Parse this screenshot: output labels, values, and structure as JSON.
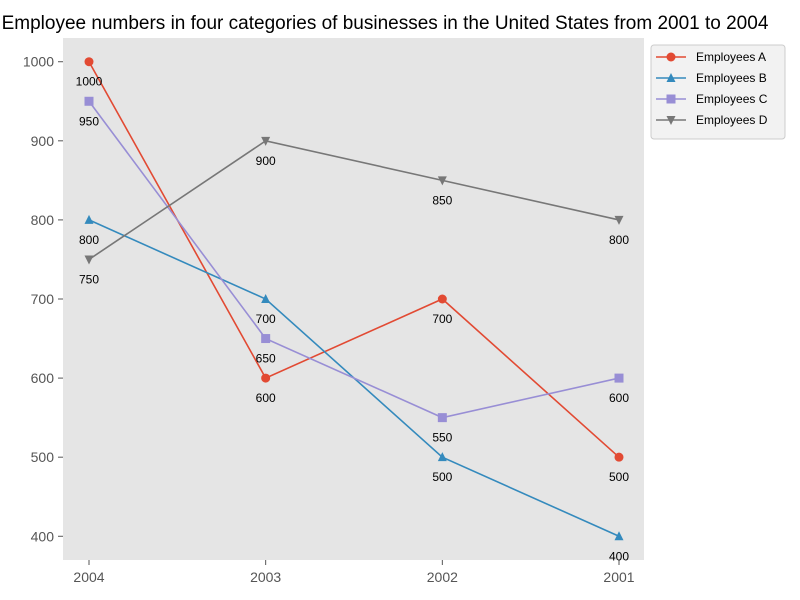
{
  "chart_data": {
    "type": "line",
    "title": "Employee numbers in four categories of businesses in the United States from 2001 to 2004",
    "xlabel": "",
    "ylabel": "",
    "categories": [
      "2004",
      "2003",
      "2002",
      "2001"
    ],
    "ylim": [
      370,
      1030
    ],
    "yticks": [
      400,
      500,
      600,
      700,
      800,
      900,
      1000
    ],
    "grid": false,
    "legend_position": "outside-top-right",
    "series": [
      {
        "name": "Employees A",
        "values": [
          1000,
          600,
          700,
          500
        ],
        "color": "#E24A33",
        "marker": "circle"
      },
      {
        "name": "Employees B",
        "values": [
          800,
          700,
          500,
          400
        ],
        "color": "#348ABD",
        "marker": "triangle-up"
      },
      {
        "name": "Employees C",
        "values": [
          950,
          650,
          550,
          600
        ],
        "color": "#988ED5",
        "marker": "square"
      },
      {
        "name": "Employees D",
        "values": [
          750,
          900,
          850,
          800
        ],
        "color": "#777777",
        "marker": "triangle-down"
      }
    ]
  }
}
